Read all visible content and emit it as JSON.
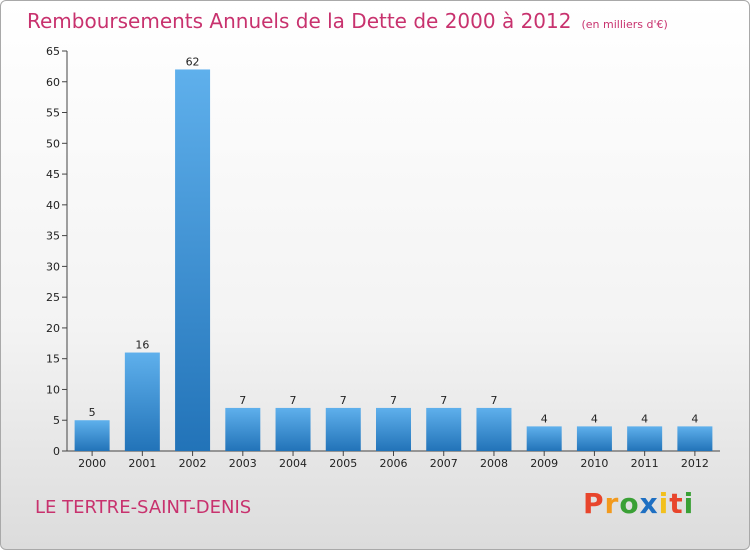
{
  "chart_data": {
    "type": "bar",
    "title": "Remboursements Annuels de la Dette de 2000 à 2012",
    "unit_note": "(en milliers d'€)",
    "categories": [
      "2000",
      "2001",
      "2002",
      "2003",
      "2004",
      "2005",
      "2006",
      "2007",
      "2008",
      "2009",
      "2010",
      "2011",
      "2012"
    ],
    "values": [
      5,
      16,
      62,
      7,
      7,
      7,
      7,
      7,
      7,
      4,
      4,
      4,
      4
    ],
    "ylim": [
      0,
      65
    ],
    "yticks": [
      0,
      5,
      10,
      15,
      20,
      25,
      30,
      35,
      40,
      45,
      50,
      55,
      60,
      65
    ],
    "grid": false,
    "bar_color": "#3b8fd4"
  },
  "commune": "LE TERTRE-SAINT-DENIS",
  "logo": {
    "letters": [
      "P",
      "r",
      "o",
      "x",
      "i",
      "t",
      "i"
    ],
    "colors": [
      "#e8452c",
      "#f29a1d",
      "#3aa035",
      "#1e6fc2",
      "#f2c01d",
      "#e8452c",
      "#3aa035"
    ]
  }
}
